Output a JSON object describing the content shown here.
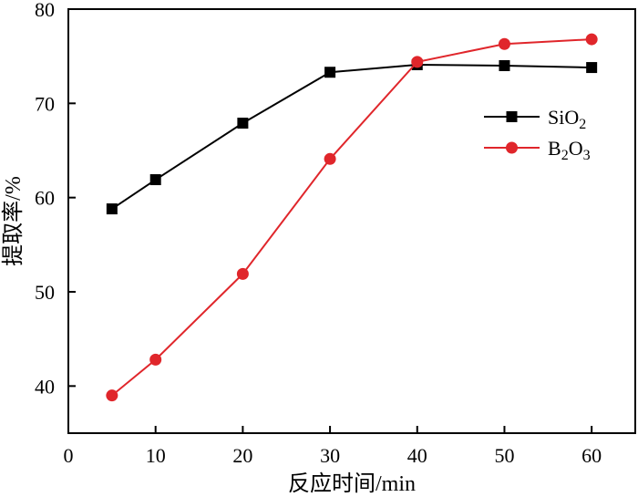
{
  "chart_data": {
    "type": "line",
    "xlabel": "反应时间/min",
    "ylabel": "提取率/%",
    "xlim": [
      0,
      65
    ],
    "ylim": [
      35,
      80
    ],
    "x_ticks": [
      0,
      10,
      20,
      30,
      40,
      50,
      60
    ],
    "y_ticks": [
      40,
      50,
      60,
      70,
      80
    ],
    "grid": false,
    "legend_position": "top-right",
    "x": [
      5,
      10,
      20,
      30,
      40,
      50,
      60
    ],
    "series": [
      {
        "name": "SiO2",
        "display": {
          "base": "SiO",
          "sub": "2"
        },
        "values": [
          58.8,
          61.9,
          67.9,
          73.3,
          74.1,
          74.0,
          73.8
        ],
        "color": "#000000",
        "marker": "square"
      },
      {
        "name": "B2O3",
        "display": {
          "base1": "B",
          "sub1": "2",
          "base2": "O",
          "sub2": "3"
        },
        "values": [
          39.0,
          42.8,
          51.9,
          64.1,
          74.4,
          76.3,
          76.8
        ],
        "color": "#e0262b",
        "marker": "circle"
      }
    ]
  }
}
